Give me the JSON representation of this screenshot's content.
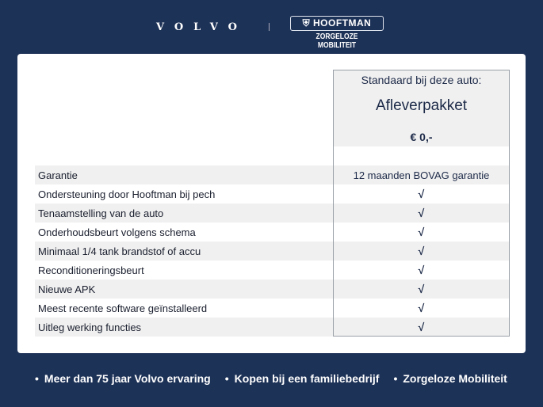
{
  "header": {
    "brand": "VOLVO",
    "dealer": "HOOFTMAN",
    "dealer_tagline": "ZORGELOZE MOBILITEIT"
  },
  "table": {
    "column_subtitle": "Standaard bij deze auto:",
    "column_title": "Afleverpakket",
    "column_price": "€ 0,-",
    "rows": [
      {
        "label": "Garantie",
        "value": "12 maanden BOVAG garantie"
      },
      {
        "label": "Ondersteuning door Hooftman bij pech",
        "value": "√"
      },
      {
        "label": "Tenaamstelling van de auto",
        "value": "√"
      },
      {
        "label": "Onderhoudsbeurt volgens schema",
        "value": "√"
      },
      {
        "label": "Minimaal 1/4 tank brandstof of accu",
        "value": "√"
      },
      {
        "label": "Reconditioneringsbeurt",
        "value": "√"
      },
      {
        "label": "Nieuwe APK",
        "value": "√"
      },
      {
        "label": "Meest recente software geïnstalleerd",
        "value": "√"
      },
      {
        "label": "Uitleg werking functies",
        "value": "√"
      }
    ]
  },
  "footer": [
    "Meer dan 75 jaar Volvo ervaring",
    "Kopen bij een familiebedrijf",
    "Zorgeloze Mobiliteit"
  ],
  "colors": {
    "background": "#1d3257",
    "text": "#1d2a48"
  }
}
